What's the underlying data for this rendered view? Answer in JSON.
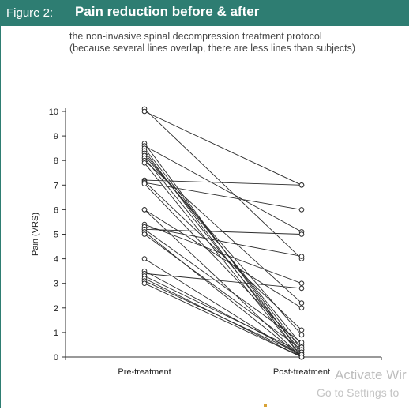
{
  "figure": {
    "label": "Figure 2:",
    "title": "Pain reduction before & after",
    "subtitle_line1": "the non-invasive spinal decompression treatment protocol",
    "subtitle_line2": "(because several lines overlap, there are less lines than subjects)"
  },
  "watermark": {
    "line1": "Activate Wir",
    "line2": "Go to Settings to"
  },
  "colors": {
    "header_bg": "#2e7d72",
    "line": "#2b2b2b",
    "marker_fill": "#ffffff"
  },
  "chart_data": {
    "type": "line",
    "xlabel": "",
    "ylabel": "Pain (VRS)",
    "categories": [
      "Pre-treatment",
      "Post-treatment"
    ],
    "ylim": [
      0,
      10
    ],
    "yticks": [
      0,
      1,
      2,
      3,
      4,
      5,
      6,
      7,
      8,
      9,
      10
    ],
    "ytick_labels": [
      "0",
      "1",
      "2",
      "3",
      "4",
      "5",
      "6",
      "7",
      "8",
      "9",
      "10"
    ],
    "grid": false,
    "series": [
      {
        "values": [
          10.1,
          4.0
        ]
      },
      {
        "values": [
          10.0,
          7.0
        ]
      },
      {
        "values": [
          8.7,
          0.1
        ]
      },
      {
        "values": [
          8.6,
          5.1
        ]
      },
      {
        "values": [
          8.5,
          0.3
        ]
      },
      {
        "values": [
          8.4,
          0.0
        ]
      },
      {
        "values": [
          8.3,
          0.5
        ]
      },
      {
        "values": [
          8.2,
          0.9
        ]
      },
      {
        "values": [
          8.1,
          0.2
        ]
      },
      {
        "values": [
          8.0,
          2.2
        ]
      },
      {
        "values": [
          7.9,
          0.0
        ]
      },
      {
        "values": [
          7.2,
          7.0
        ]
      },
      {
        "values": [
          7.15,
          1.1
        ]
      },
      {
        "values": [
          7.1,
          6.0
        ]
      },
      {
        "values": [
          7.05,
          0.4
        ]
      },
      {
        "values": [
          6.0,
          0.0
        ]
      },
      {
        "values": [
          6.0,
          2.0
        ]
      },
      {
        "values": [
          5.4,
          3.0
        ]
      },
      {
        "values": [
          5.3,
          4.1
        ]
      },
      {
        "values": [
          5.2,
          0.6
        ]
      },
      {
        "values": [
          5.2,
          5.0
        ]
      },
      {
        "values": [
          5.1,
          0.0
        ]
      },
      {
        "values": [
          5.0,
          0.3
        ]
      },
      {
        "values": [
          4.0,
          0.0
        ]
      },
      {
        "values": [
          3.5,
          0.1
        ]
      },
      {
        "values": [
          3.4,
          2.8
        ]
      },
      {
        "values": [
          3.3,
          0.2
        ]
      },
      {
        "values": [
          3.2,
          0.0
        ]
      },
      {
        "values": [
          3.1,
          0.1
        ]
      },
      {
        "values": [
          3.0,
          0.0
        ]
      }
    ]
  }
}
